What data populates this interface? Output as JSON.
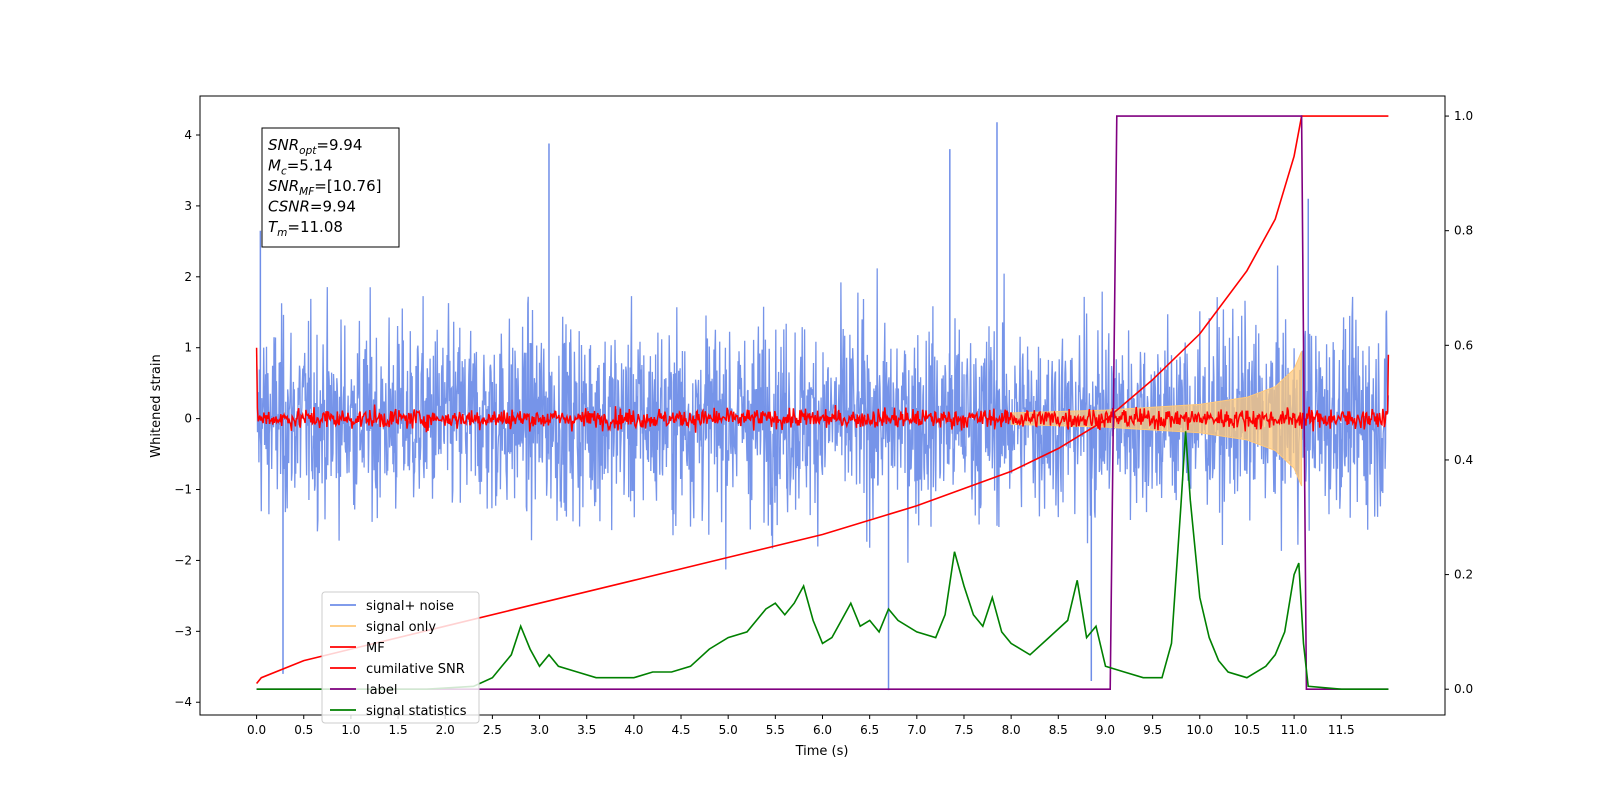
{
  "chart_data": {
    "type": "line",
    "xlabel": "Time (s)",
    "ylabel": "Whitened strain",
    "xlim": [
      -0.6,
      12.6
    ],
    "ylim": [
      -4.18,
      4.55
    ],
    "y2lim": [
      -0.045,
      1.035
    ],
    "grid": false,
    "legend_position": "lower-left",
    "x_ticks": [
      "0.0",
      "0.5",
      "1.0",
      "1.5",
      "2.0",
      "2.5",
      "3.0",
      "3.5",
      "4.0",
      "4.5",
      "5.0",
      "5.5",
      "6.0",
      "6.5",
      "7.0",
      "7.5",
      "8.0",
      "8.5",
      "9.0",
      "9.5",
      "10.0",
      "10.5",
      "11.0",
      "11.5"
    ],
    "y_ticks": [
      "4",
      "3",
      "2",
      "1",
      "0",
      "−1",
      "−2",
      "−3",
      "−4"
    ],
    "y2_ticks": [
      "1.0",
      "0.8",
      "0.6",
      "0.4",
      "0.2",
      "0.0"
    ],
    "annotation": {
      "lines": [
        {
          "name": "SNR",
          "sub": "opt",
          "value": "=9.94"
        },
        {
          "name": "M",
          "sub": "c",
          "value": "=5.14"
        },
        {
          "name": "SNR",
          "sub": "MF",
          "value": "=[10.76]"
        },
        {
          "name": "CSNR",
          "sub": "",
          "value": "=9.94"
        },
        {
          "name": "T",
          "sub": "m",
          "value": "=11.08"
        }
      ]
    },
    "legend": [
      {
        "label": "signal+ noise",
        "color": "#6f8ee8"
      },
      {
        "label": "signal only",
        "color": "#ffc87a"
      },
      {
        "label": "MF",
        "color": "#ff0000"
      },
      {
        "label": "cumilative SNR",
        "color": "#ff0000"
      },
      {
        "label": "label",
        "color": "#800080"
      },
      {
        "label": "signal statistics",
        "color": "#008000"
      }
    ],
    "series": [
      {
        "name": "signal+ noise",
        "axis": "left",
        "color": "#6f8ee8",
        "x_range": [
          0.0,
          12.0
        ],
        "typical_min": -1.6,
        "typical_max": 1.6,
        "peaks": [
          [
            0.04,
            2.65
          ],
          [
            0.28,
            -3.6
          ],
          [
            3.1,
            3.88
          ],
          [
            6.7,
            -3.83
          ],
          [
            7.35,
            3.8
          ],
          [
            7.85,
            4.18
          ],
          [
            8.85,
            -3.7
          ],
          [
            11.15,
            3.1
          ]
        ]
      },
      {
        "name": "signal only",
        "axis": "left",
        "color": "#ffc87a",
        "x": [
          8.0,
          9.0,
          9.5,
          10.0,
          10.5,
          10.8,
          11.0,
          11.08
        ],
        "envelope": [
          0.08,
          0.12,
          0.16,
          0.2,
          0.3,
          0.45,
          0.7,
          0.95
        ]
      },
      {
        "name": "MF",
        "axis": "left",
        "color": "#ff0000",
        "x_range": [
          0.0,
          12.0
        ],
        "amplitude": 0.18,
        "start_value": 1.0,
        "end_value": 0.9
      },
      {
        "name": "cumilative SNR",
        "axis": "right",
        "color": "#ff0000",
        "x": [
          0.0,
          0.05,
          0.5,
          1.0,
          2.0,
          3.0,
          4.0,
          5.0,
          6.0,
          7.0,
          8.0,
          8.5,
          9.0,
          9.5,
          10.0,
          10.5,
          10.8,
          11.0,
          11.08,
          12.0
        ],
        "y": [
          0.01,
          0.02,
          0.05,
          0.07,
          0.11,
          0.15,
          0.19,
          0.23,
          0.27,
          0.32,
          0.38,
          0.42,
          0.47,
          0.54,
          0.62,
          0.73,
          0.82,
          0.93,
          1.0,
          1.0
        ]
      },
      {
        "name": "label",
        "axis": "right",
        "color": "#800080",
        "x": [
          0.0,
          9.05,
          9.12,
          11.08,
          11.13,
          12.0
        ],
        "y": [
          0.0,
          0.0,
          1.0,
          1.0,
          0.0,
          0.0
        ]
      },
      {
        "name": "signal statistics",
        "axis": "right",
        "color": "#008000",
        "x": [
          0.0,
          1.0,
          1.8,
          2.3,
          2.5,
          2.6,
          2.7,
          2.8,
          2.9,
          3.0,
          3.1,
          3.2,
          3.4,
          3.6,
          3.8,
          4.0,
          4.2,
          4.4,
          4.6,
          4.8,
          5.0,
          5.2,
          5.4,
          5.5,
          5.6,
          5.7,
          5.8,
          5.9,
          6.0,
          6.1,
          6.2,
          6.3,
          6.4,
          6.5,
          6.6,
          6.7,
          6.8,
          7.0,
          7.2,
          7.3,
          7.4,
          7.5,
          7.6,
          7.7,
          7.8,
          7.9,
          8.0,
          8.2,
          8.4,
          8.6,
          8.7,
          8.8,
          8.9,
          9.0,
          9.2,
          9.4,
          9.6,
          9.7,
          9.8,
          9.85,
          9.9,
          10.0,
          10.1,
          10.2,
          10.3,
          10.5,
          10.7,
          10.8,
          10.9,
          11.0,
          11.05,
          11.1,
          11.15,
          11.5,
          12.0
        ],
        "y": [
          0.0,
          0.0,
          0.0,
          0.005,
          0.02,
          0.04,
          0.06,
          0.11,
          0.07,
          0.04,
          0.06,
          0.04,
          0.03,
          0.02,
          0.02,
          0.02,
          0.03,
          0.03,
          0.04,
          0.07,
          0.09,
          0.1,
          0.14,
          0.15,
          0.13,
          0.15,
          0.18,
          0.12,
          0.08,
          0.09,
          0.12,
          0.15,
          0.11,
          0.12,
          0.1,
          0.14,
          0.12,
          0.1,
          0.09,
          0.13,
          0.24,
          0.18,
          0.13,
          0.11,
          0.16,
          0.1,
          0.08,
          0.06,
          0.09,
          0.12,
          0.19,
          0.09,
          0.11,
          0.04,
          0.03,
          0.02,
          0.02,
          0.08,
          0.32,
          0.45,
          0.33,
          0.16,
          0.09,
          0.05,
          0.03,
          0.02,
          0.04,
          0.06,
          0.1,
          0.2,
          0.22,
          0.08,
          0.005,
          0.0,
          0.0
        ]
      }
    ]
  }
}
